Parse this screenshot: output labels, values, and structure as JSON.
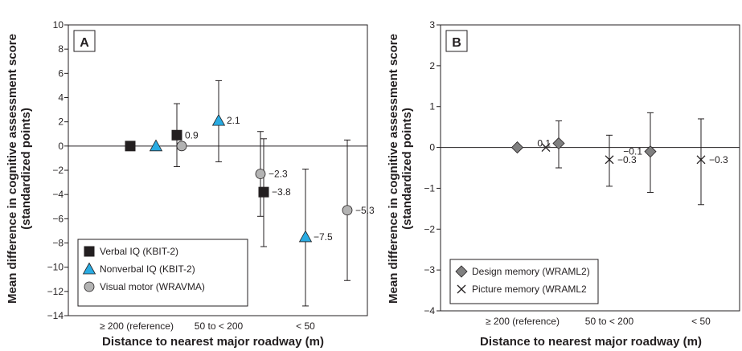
{
  "chart_data": [
    {
      "panel": "A",
      "type": "scatter",
      "ylabel": "Mean difference in cognitive assessment score (standardized points)",
      "xlabel": "Distance to nearest major roadway (m)",
      "categories": [
        "≥ 200 (reference)",
        "50 to < 200",
        "< 50"
      ],
      "ylim": [
        -14,
        10
      ],
      "yticks": [
        10,
        8,
        6,
        4,
        2,
        0,
        -2,
        -4,
        -6,
        -8,
        -10,
        -12,
        -14
      ],
      "series": [
        {
          "name": "Verbal IQ (KBIT-2)",
          "marker": "square",
          "color": "#231f20",
          "values": [
            0,
            0.9,
            -3.8
          ],
          "ci_low": [
            null,
            -1.7,
            -8.3
          ],
          "ci_high": [
            null,
            3.5,
            0.6
          ],
          "labels": [
            "",
            "0.9",
            "−3.8"
          ]
        },
        {
          "name": "Nonverbal IQ (KBIT-2)",
          "marker": "triangle",
          "color": "#29abe2",
          "values": [
            0,
            2.1,
            -7.5
          ],
          "ci_low": [
            null,
            -1.3,
            -13.2
          ],
          "ci_high": [
            null,
            5.4,
            -1.9
          ],
          "labels": [
            "",
            "2.1",
            "−7.5"
          ]
        },
        {
          "name": "Visual motor (WRAVMA)",
          "marker": "circle",
          "color": "#b3b3b3",
          "values": [
            0,
            -2.3,
            -5.3
          ],
          "ci_low": [
            null,
            -5.8,
            -11.1
          ],
          "ci_high": [
            null,
            1.2,
            0.5
          ],
          "labels": [
            "",
            "−2.3",
            "−5.3"
          ]
        }
      ],
      "legend_position": "bottom-left"
    },
    {
      "panel": "B",
      "type": "scatter",
      "ylabel": "Mean difference in cognitive assessment score (standardized points)",
      "xlabel": "Distance to nearest major roadway (m)",
      "categories": [
        "≥ 200 (reference)",
        "50 to < 200",
        "< 50"
      ],
      "ylim": [
        -4,
        3
      ],
      "yticks": [
        3,
        2,
        1,
        0,
        -1,
        -2,
        -3,
        -4
      ],
      "series": [
        {
          "name": "Design memory (WRAML2)",
          "marker": "diamond",
          "color": "#808080",
          "values": [
            0,
            0.1,
            -0.1
          ],
          "ci_low": [
            null,
            -0.5,
            -1.1
          ],
          "ci_high": [
            null,
            0.65,
            0.85
          ],
          "labels": [
            "",
            "0.1",
            "−0.1"
          ]
        },
        {
          "name": "Picture memory (WRAML2",
          "marker": "x",
          "color": "#231f20",
          "values": [
            0,
            -0.3,
            -0.3
          ],
          "ci_low": [
            null,
            -0.95,
            -1.4
          ],
          "ci_high": [
            null,
            0.3,
            0.7
          ],
          "labels": [
            "",
            "−0.3",
            "−0.3"
          ]
        }
      ],
      "legend_position": "bottom-left"
    }
  ]
}
